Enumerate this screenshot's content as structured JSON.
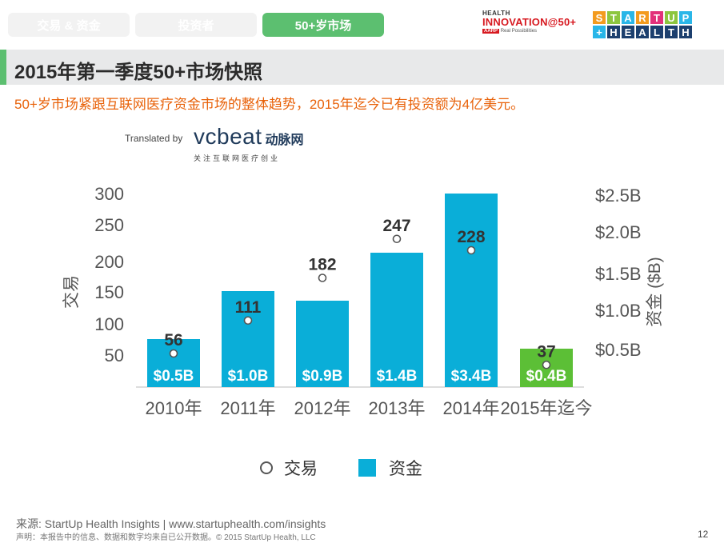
{
  "tabs": [
    {
      "label": "交易 & 资金",
      "active": false
    },
    {
      "label": "投资者",
      "active": false
    },
    {
      "label": "50+岁市场",
      "active": true
    }
  ],
  "logo_health_innovation": {
    "line1": "HEALTH",
    "line2": "INNOVATION@50+",
    "badge": "AARP",
    "line3": "Real Possibilities"
  },
  "logo_startup_health": {
    "top": [
      "S",
      "T",
      "A",
      "R",
      "T",
      "U",
      "P"
    ],
    "bottom": [
      "+",
      "H",
      "E",
      "A",
      "L",
      "T",
      "H"
    ]
  },
  "page_title": "2015年第一季度50+市场快照",
  "subtitle": "50+岁市场紧跟互联网医疗资金市场的整体趋势，2015年迄今已有投资额为4亿美元。",
  "translated_by": "Translated by",
  "vcbeat": {
    "word": "vcbeat",
    "cn": "动脉网",
    "tagline": "关注互联网医疗创业"
  },
  "chart_data": {
    "type": "bar",
    "categories": [
      "2010年",
      "2011年",
      "2012年",
      "2013年",
      "2014年",
      "2015年迄今"
    ],
    "series": [
      {
        "name": "资金",
        "kind": "bar",
        "axis": "right",
        "values": [
          0.5,
          1.0,
          0.9,
          1.4,
          3.4,
          0.4
        ],
        "labels": [
          "$0.5B",
          "$1.0B",
          "$0.9B",
          "$1.4B",
          "$3.4B",
          "$0.4B"
        ],
        "colors": [
          "#0aaed8",
          "#0aaed8",
          "#0aaed8",
          "#0aaed8",
          "#0aaed8",
          "#5cbf36"
        ]
      },
      {
        "name": "交易",
        "kind": "point",
        "axis": "left",
        "values": [
          56,
          111,
          182,
          247,
          228,
          37
        ],
        "labels": [
          "56",
          "111",
          "182",
          "247",
          "228",
          "37"
        ]
      }
    ],
    "left_axis": {
      "label": "交易",
      "ticks": [
        "300",
        "250",
        "200",
        "150",
        "100",
        "50"
      ]
    },
    "right_axis": {
      "label": "资金 ($B)",
      "ticks": [
        "$2.5B",
        "$2.0B",
        "$1.5B",
        "$1.0B",
        "$0.5B"
      ]
    }
  },
  "legend": {
    "deals": "交易",
    "funding": "资金"
  },
  "source": "来源: StartUp Health Insights | www.startuphealth.com/insights",
  "disclaimer": "声明：本报告中的信息、数据和数字均来自已公开数据。© 2015 StartUp Health, LLC",
  "page_number": "12",
  "colors": {
    "accent_green": "#5cbf70",
    "bar_blue": "#0aaed8",
    "orange_text": "#e8620a",
    "logo_red": "#d71920"
  }
}
